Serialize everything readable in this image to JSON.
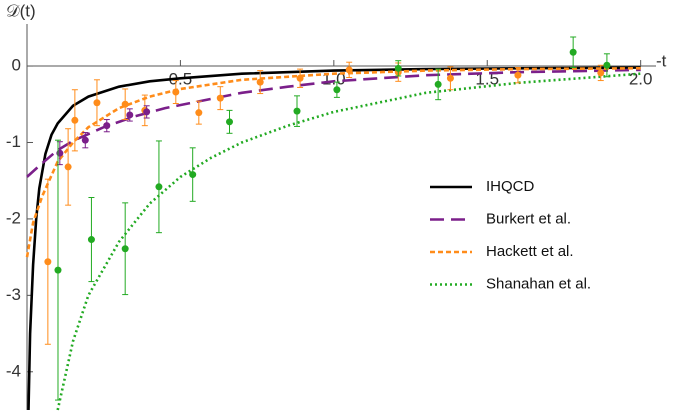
{
  "chart_data": {
    "type": "line",
    "x_label": "-t",
    "y_label": "𝒟(t)",
    "xlim": [
      0,
      2.05
    ],
    "ylim": [
      -4.5,
      0.55
    ],
    "xticks": [
      0.5,
      {
        "value": 1.0,
        "label": "1.0"
      },
      1.5,
      {
        "value": 2.0,
        "label": "2.0"
      }
    ],
    "yticks": [
      0,
      -1,
      -2,
      -3,
      -4
    ],
    "legend": "right",
    "series": [
      {
        "name": "IHQCD",
        "color": "#000000",
        "dash": "solid",
        "x": [
          0.005,
          0.01,
          0.02,
          0.03,
          0.04,
          0.06,
          0.08,
          0.1,
          0.15,
          0.2,
          0.3,
          0.4,
          0.5,
          0.7,
          1.0,
          1.3,
          1.6,
          2.0
        ],
        "values": [
          -4.5,
          -3.5,
          -2.6,
          -2.0,
          -1.6,
          -1.15,
          -0.9,
          -0.75,
          -0.52,
          -0.4,
          -0.27,
          -0.2,
          -0.16,
          -0.1,
          -0.06,
          -0.04,
          -0.03,
          -0.02
        ]
      },
      {
        "name": "Burkert et al.",
        "color": "#7b1f8a",
        "dash": "dashed",
        "x": [
          0,
          0.05,
          0.1,
          0.15,
          0.25,
          0.35,
          0.45,
          0.6,
          0.7,
          0.85,
          1.0,
          1.3,
          1.6,
          2.0
        ],
        "values": [
          -1.45,
          -1.27,
          -1.1,
          -0.98,
          -0.8,
          -0.66,
          -0.55,
          -0.43,
          -0.35,
          -0.27,
          -0.2,
          -0.12,
          -0.08,
          -0.05
        ]
      },
      {
        "name": "Hackett et al.",
        "color": "#ff8c1a",
        "dash": "short",
        "x": [
          0,
          0.02,
          0.05,
          0.1,
          0.15,
          0.2,
          0.3,
          0.4,
          0.5,
          0.7,
          1.0,
          1.3,
          1.6,
          2.0
        ],
        "values": [
          -2.5,
          -2.05,
          -1.7,
          -1.25,
          -1.0,
          -0.8,
          -0.55,
          -0.4,
          -0.3,
          -0.18,
          -0.1,
          -0.06,
          -0.04,
          -0.03
        ]
      },
      {
        "name": "Shanahan et al.",
        "color": "#22aa22",
        "dash": "dotted",
        "x": [
          0.1,
          0.15,
          0.2,
          0.3,
          0.4,
          0.5,
          0.6,
          0.7,
          0.85,
          1.0,
          1.3,
          1.6,
          2.0
        ],
        "values": [
          -4.5,
          -3.6,
          -3.0,
          -2.3,
          -1.8,
          -1.45,
          -1.2,
          -1.0,
          -0.78,
          -0.6,
          -0.35,
          -0.22,
          -0.1
        ]
      }
    ],
    "data_points": [
      {
        "color": "#ff8c1a",
        "x": [
          0.068,
          0.134,
          0.156,
          0.228,
          0.32,
          0.384,
          0.485,
          0.56,
          0.63,
          0.76,
          0.89,
          1.05,
          1.21,
          1.38,
          1.6,
          1.87
        ],
        "values": [
          -2.56,
          -1.32,
          -0.71,
          -0.48,
          -0.5,
          -0.58,
          -0.34,
          -0.61,
          -0.42,
          -0.21,
          -0.16,
          -0.05,
          -0.08,
          -0.16,
          -0.12,
          -0.09
        ],
        "errors": [
          1.08,
          0.5,
          0.4,
          0.3,
          0.2,
          0.2,
          0.15,
          0.15,
          0.15,
          0.15,
          0.12,
          0.1,
          0.12,
          0.15,
          0.1,
          0.1
        ]
      },
      {
        "color": "#7b1f8a",
        "x": [
          0.107,
          0.19,
          0.26,
          0.335,
          0.39
        ],
        "values": [
          -1.14,
          -0.97,
          -0.78,
          -0.64,
          -0.6
        ],
        "errors": [
          0.15,
          0.1,
          0.08,
          0.08,
          0.08
        ]
      },
      {
        "color": "#22aa22",
        "x": [
          0.101,
          0.21,
          0.32,
          0.43,
          0.54,
          0.66,
          0.88,
          1.01,
          1.21,
          1.34,
          1.78,
          1.89
        ],
        "values": [
          -2.67,
          -2.27,
          -2.39,
          -1.58,
          -1.42,
          -0.73,
          -0.59,
          -0.31,
          -0.03,
          -0.24,
          0.18,
          0.01
        ],
        "errors": [
          1.7,
          0.55,
          0.6,
          0.6,
          0.35,
          0.15,
          0.2,
          0.1,
          0.1,
          0.2,
          0.2,
          0.15
        ]
      }
    ]
  }
}
